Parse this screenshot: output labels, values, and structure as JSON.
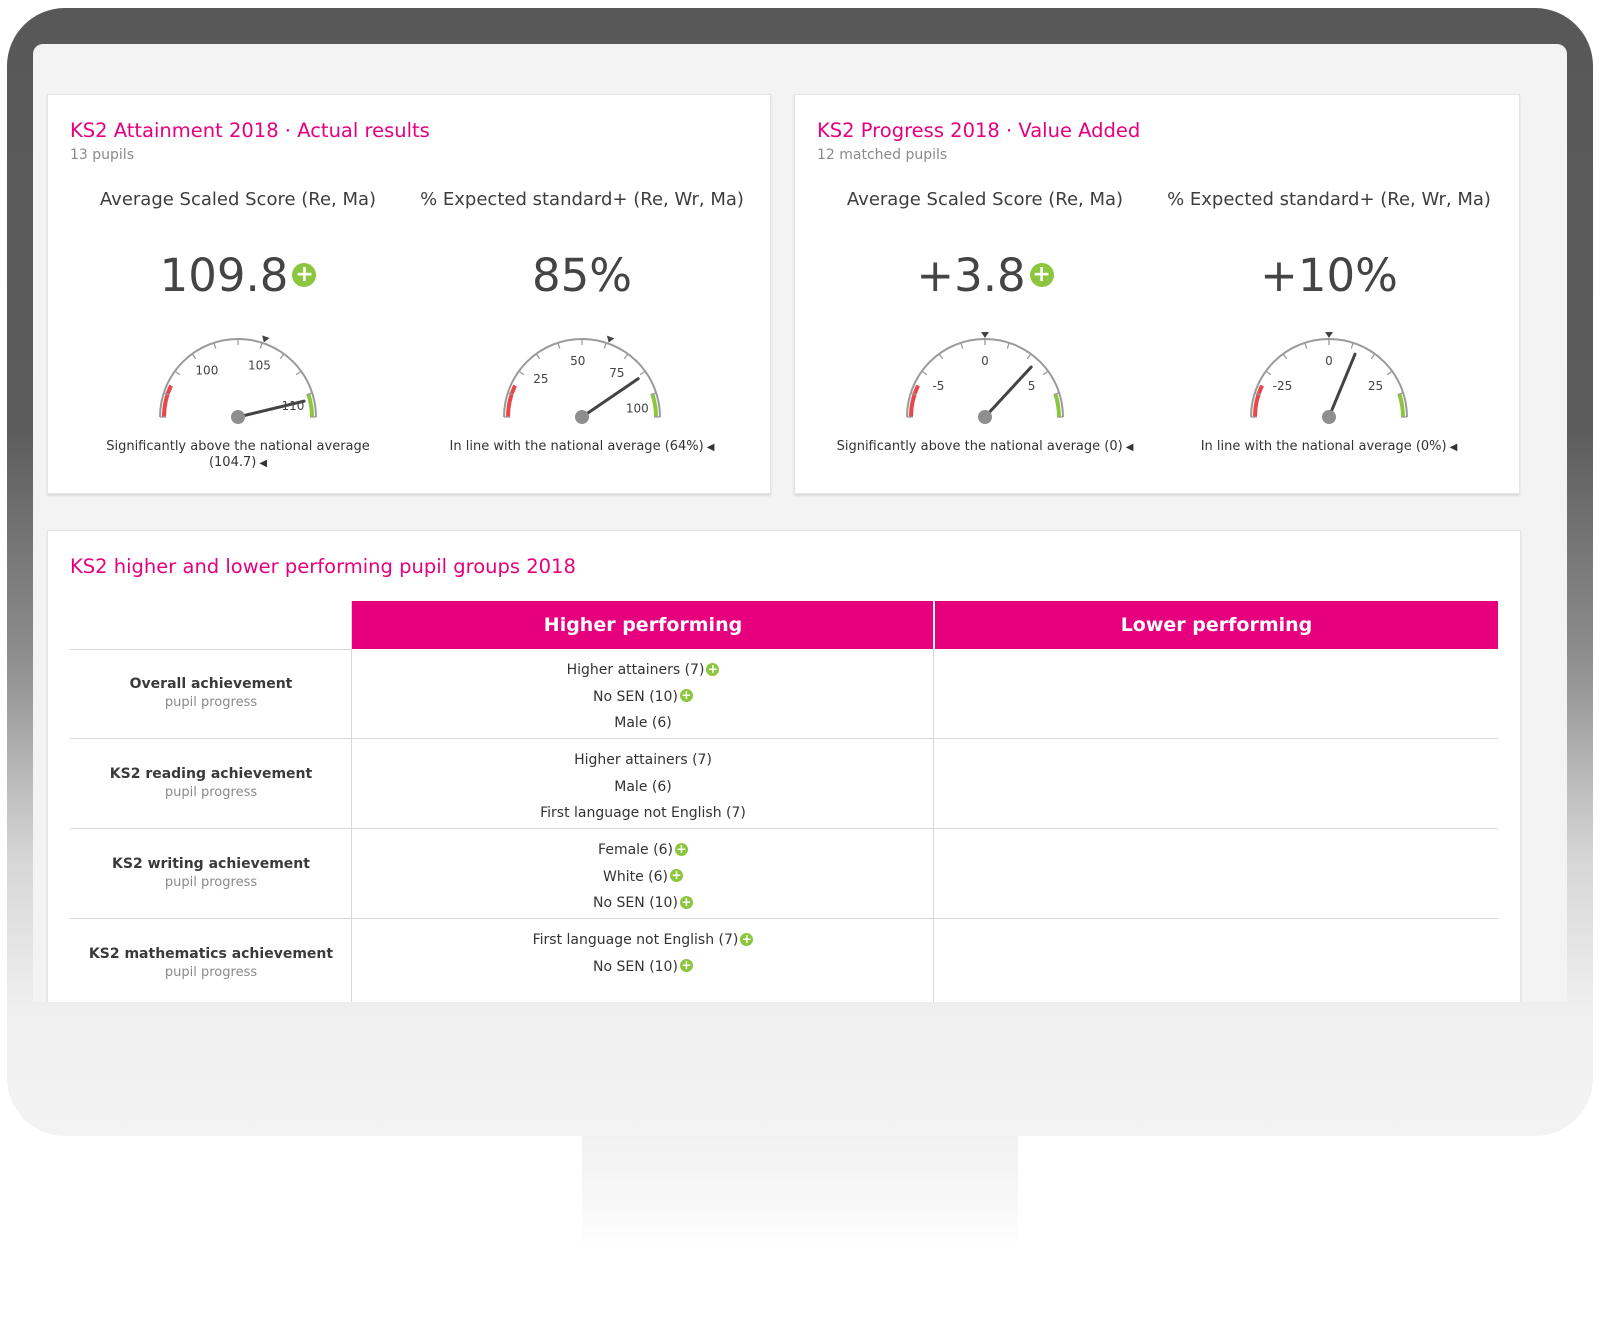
{
  "colors": {
    "brand": "#e6007e",
    "positive": "#8cc63f",
    "negative": "#e8474c",
    "needle": "#444444"
  },
  "attainment": {
    "title": "KS2 Attainment 2018 · Actual results",
    "subtitle": "13 pupils",
    "metrics": [
      {
        "label": "Average Scaled Score (Re, Ma)",
        "value": "109.8",
        "badge": "plus-icon",
        "caption": "Significantly above the national average (104.7)",
        "gauge": {
          "min": 95,
          "max": 111,
          "value": 109.8,
          "marker": 104.7,
          "ticks": [
            100,
            105,
            110
          ],
          "tick_labels": [
            "100",
            "105",
            "110"
          ]
        }
      },
      {
        "label": "% Expected standard+ (Re, Wr, Ma)",
        "value": "85%",
        "badge": "",
        "caption": "In line with the national average (64%)",
        "gauge": {
          "min": 0,
          "max": 105,
          "value": 85,
          "marker": 64,
          "ticks": [
            25,
            50,
            75,
            100
          ],
          "tick_labels": [
            "25",
            "50",
            "75",
            "100"
          ]
        }
      }
    ]
  },
  "progress": {
    "title": "KS2 Progress 2018 · Value Added",
    "subtitle": "12 matched pupils",
    "metrics": [
      {
        "label": "Average Scaled Score (Re, Ma)",
        "value": "+3.8",
        "badge": "plus-icon",
        "caption": "Significantly above the national average (0)",
        "gauge": {
          "min": -8,
          "max": 8,
          "value": 3.8,
          "marker": 0,
          "ticks": [
            -5,
            0,
            5
          ],
          "tick_labels": [
            "-5",
            "0",
            "5"
          ]
        }
      },
      {
        "label": "% Expected standard+ (Re, Wr, Ma)",
        "value": "+10%",
        "badge": "",
        "caption": "In line with the national average (0%)",
        "gauge": {
          "min": -40,
          "max": 40,
          "value": 10,
          "marker": 0,
          "ticks": [
            -25,
            0,
            25
          ],
          "tick_labels": [
            "-25",
            "0",
            "25"
          ]
        }
      }
    ]
  },
  "groups": {
    "title": "KS2 higher and lower performing pupil groups 2018",
    "columns": [
      "Higher performing",
      "Lower performing"
    ],
    "rows": [
      {
        "title": "Overall achievement",
        "subtitle": "pupil progress",
        "higher": [
          {
            "text": "Higher attainers (7)",
            "plus": true
          },
          {
            "text": "No SEN (10)",
            "plus": true
          },
          {
            "text": "Male (6)",
            "plus": false
          }
        ],
        "lower": []
      },
      {
        "title": "KS2 reading achievement",
        "subtitle": "pupil progress",
        "higher": [
          {
            "text": "Higher attainers (7)",
            "plus": false
          },
          {
            "text": "Male (6)",
            "plus": false
          },
          {
            "text": "First language not English (7)",
            "plus": false
          }
        ],
        "lower": []
      },
      {
        "title": "KS2 writing achievement",
        "subtitle": "pupil progress",
        "higher": [
          {
            "text": "Female (6)",
            "plus": true
          },
          {
            "text": "White (6)",
            "plus": true
          },
          {
            "text": "No SEN (10)",
            "plus": true
          }
        ],
        "lower": []
      },
      {
        "title": "KS2 mathematics achievement",
        "subtitle": "pupil progress",
        "higher": [
          {
            "text": "First language not English (7)",
            "plus": true
          },
          {
            "text": "No SEN (10)",
            "plus": true
          }
        ],
        "lower": []
      }
    ]
  }
}
